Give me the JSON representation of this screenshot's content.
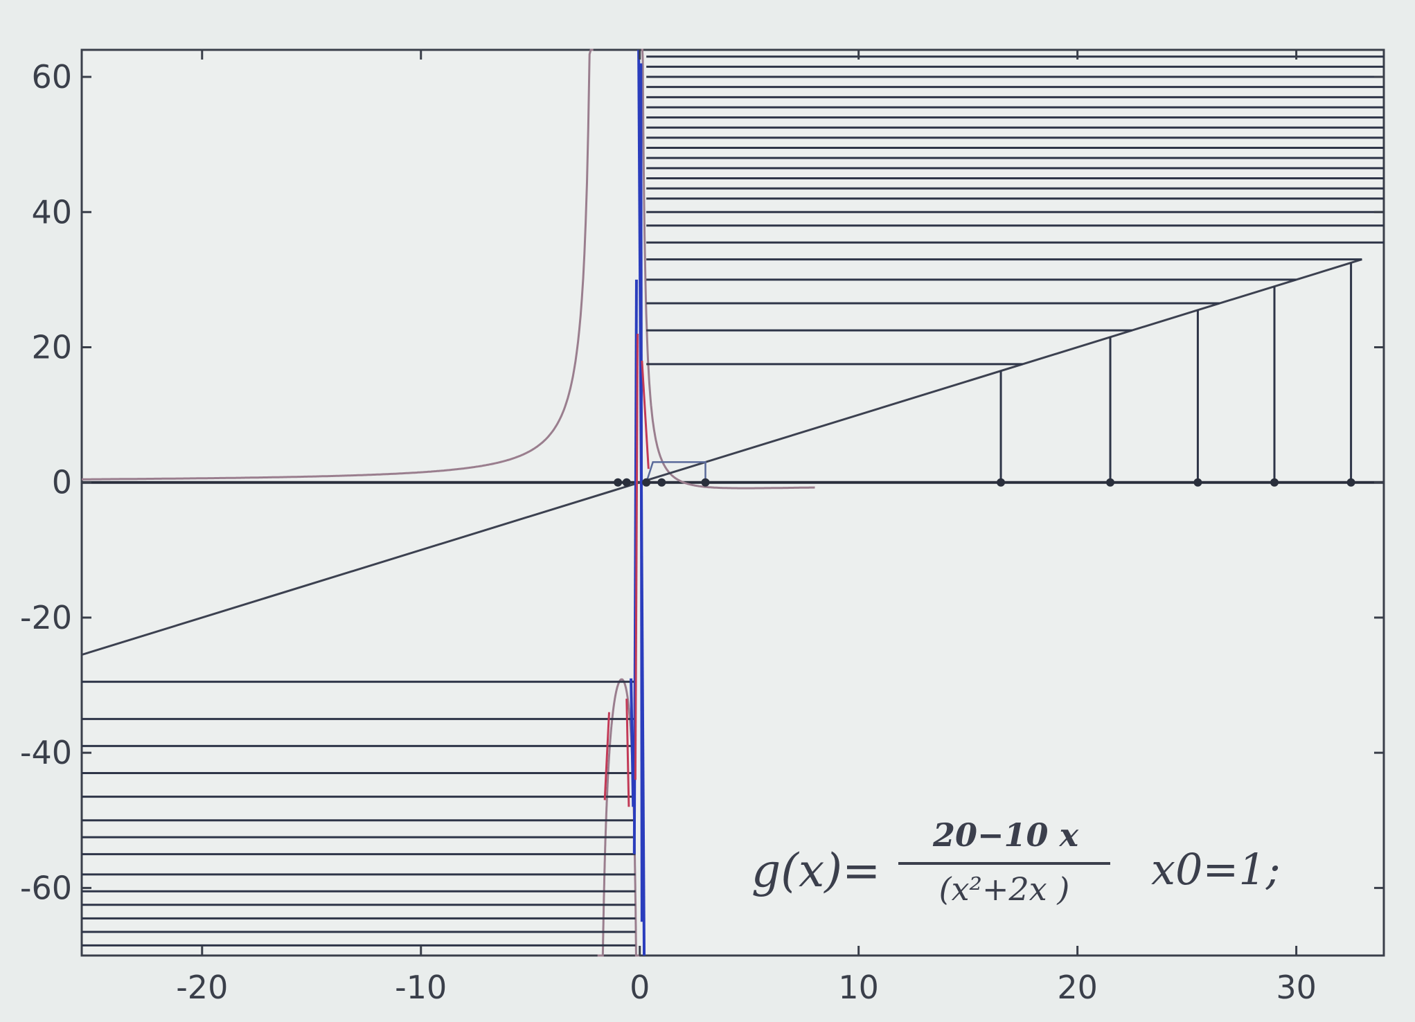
{
  "chart_data": {
    "type": "line",
    "title": "",
    "xlabel": "",
    "ylabel": "",
    "xlim": [
      -25.5,
      34
    ],
    "ylim": [
      -70,
      64
    ],
    "x_ticks": [
      -20,
      -10,
      0,
      10,
      20,
      30
    ],
    "y_ticks": [
      60,
      40,
      20,
      0,
      -20,
      -40,
      -60
    ],
    "x_tick_labels": [
      "-20",
      "-10",
      "0",
      "10",
      "20",
      "30"
    ],
    "y_tick_labels": [
      "60",
      "40",
      "20",
      "0",
      "-20",
      "-40",
      "-60"
    ],
    "grid": false,
    "series": [
      {
        "name": "",
        "kind": "function g(x) = (20-10x)/(x^2+2x)",
        "color": "#9a7e8e"
      },
      {
        "name": "",
        "kind": "line y = x",
        "points": [
          [
            -25.5,
            -25.5
          ],
          [
            33,
            33
          ]
        ],
        "color": "#3c4150"
      },
      {
        "name": "",
        "kind": "cobweb horizontal segments",
        "color": "#2e3548",
        "upper_y": [
          17.5,
          22.5,
          26.5,
          30,
          33,
          35.5,
          38,
          40,
          42,
          43.5,
          45,
          46.5,
          48,
          49.5,
          51,
          52.5,
          54,
          55.5,
          57,
          58.5,
          60,
          61.5,
          63
        ],
        "lower_y": [
          -29.5,
          -35,
          -39,
          -43,
          -46.5,
          -50,
          -52.5,
          -55,
          -58,
          -60.5,
          -62.5,
          -64.5,
          -66.5,
          -68.5
        ]
      },
      {
        "name": "",
        "kind": "cobweb vertical segments",
        "color": "#2e3548",
        "x": [
          16.5,
          21.5,
          25.5,
          29,
          32.5
        ]
      },
      {
        "name": "",
        "kind": "iterate points on x-axis",
        "color": "#2a2f3c",
        "x": [
          -1,
          -0.6,
          0.3,
          1,
          3,
          16.5,
          21.5,
          25.5,
          29,
          32.5
        ]
      },
      {
        "name": "",
        "kind": "near-vertical iteration lines",
        "color": "#2a3dbd"
      },
      {
        "name": "",
        "kind": "near-vertical iteration lines",
        "color": "#c23a57"
      }
    ],
    "annotation": {
      "lhs": "g(x)=",
      "numerator": "20−10 x",
      "denominator": "(x²+2x   )",
      "x0_text": "x0=1;"
    }
  }
}
